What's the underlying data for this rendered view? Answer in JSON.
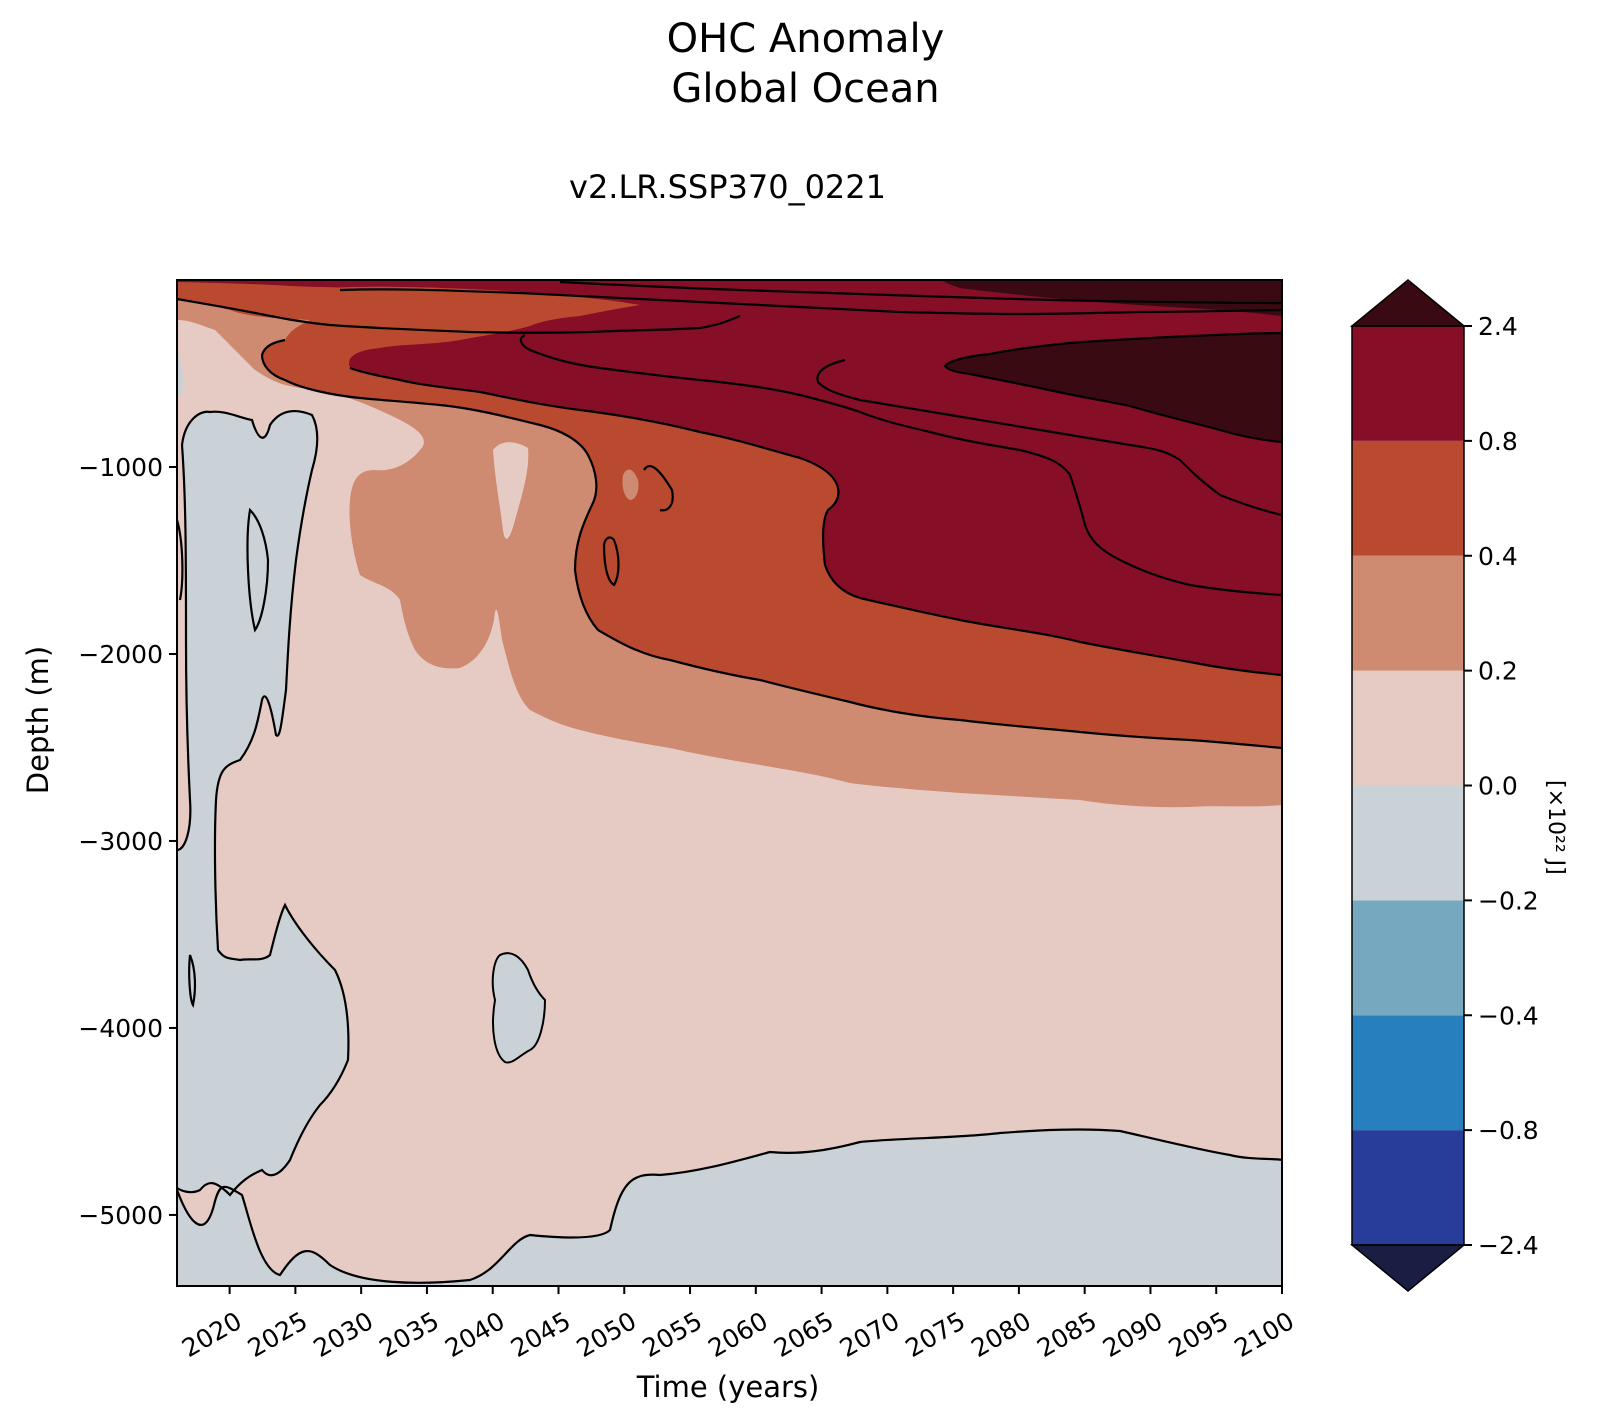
{
  "chart_data": {
    "type": "heatmap",
    "title": "OHC Anomaly",
    "subtitle": "Global Ocean",
    "run_label": "v2.LR.SSP370_0221",
    "xlabel": "Time (years)",
    "ylabel": "Depth (m)",
    "colorbar_label": "[×10²² J]",
    "xlim": [
      2016,
      2100
    ],
    "ylim": [
      -5380,
      0
    ],
    "x_ticks": [
      "2020",
      "2025",
      "2030",
      "2035",
      "2040",
      "2045",
      "2050",
      "2055",
      "2060",
      "2065",
      "2070",
      "2075",
      "2080",
      "2085",
      "2090",
      "2095",
      "2100"
    ],
    "y_ticks": [
      "−1000",
      "−2000",
      "−3000",
      "−4000",
      "−5000"
    ],
    "y_tick_values": [
      -1000,
      -2000,
      -3000,
      -4000,
      -5000
    ],
    "colorbar_ticks": [
      "2.4",
      "0.8",
      "0.4",
      "0.2",
      "0.0",
      "−0.2",
      "−0.4",
      "−0.8",
      "−2.4"
    ],
    "levels": [
      -2.4,
      -0.8,
      -0.4,
      -0.2,
      0.0,
      0.2,
      0.4,
      0.8,
      2.4
    ],
    "colors": {
      "under": "#1a1e42",
      "bands": [
        "#283d9a",
        "#277fbd",
        "#76a9c0",
        "#cbd2d7",
        "#e6cbc4",
        "#cf8b72",
        "#b94a30",
        "#870e27"
      ],
      "over": "#3a0a12"
    },
    "grid": false
  }
}
